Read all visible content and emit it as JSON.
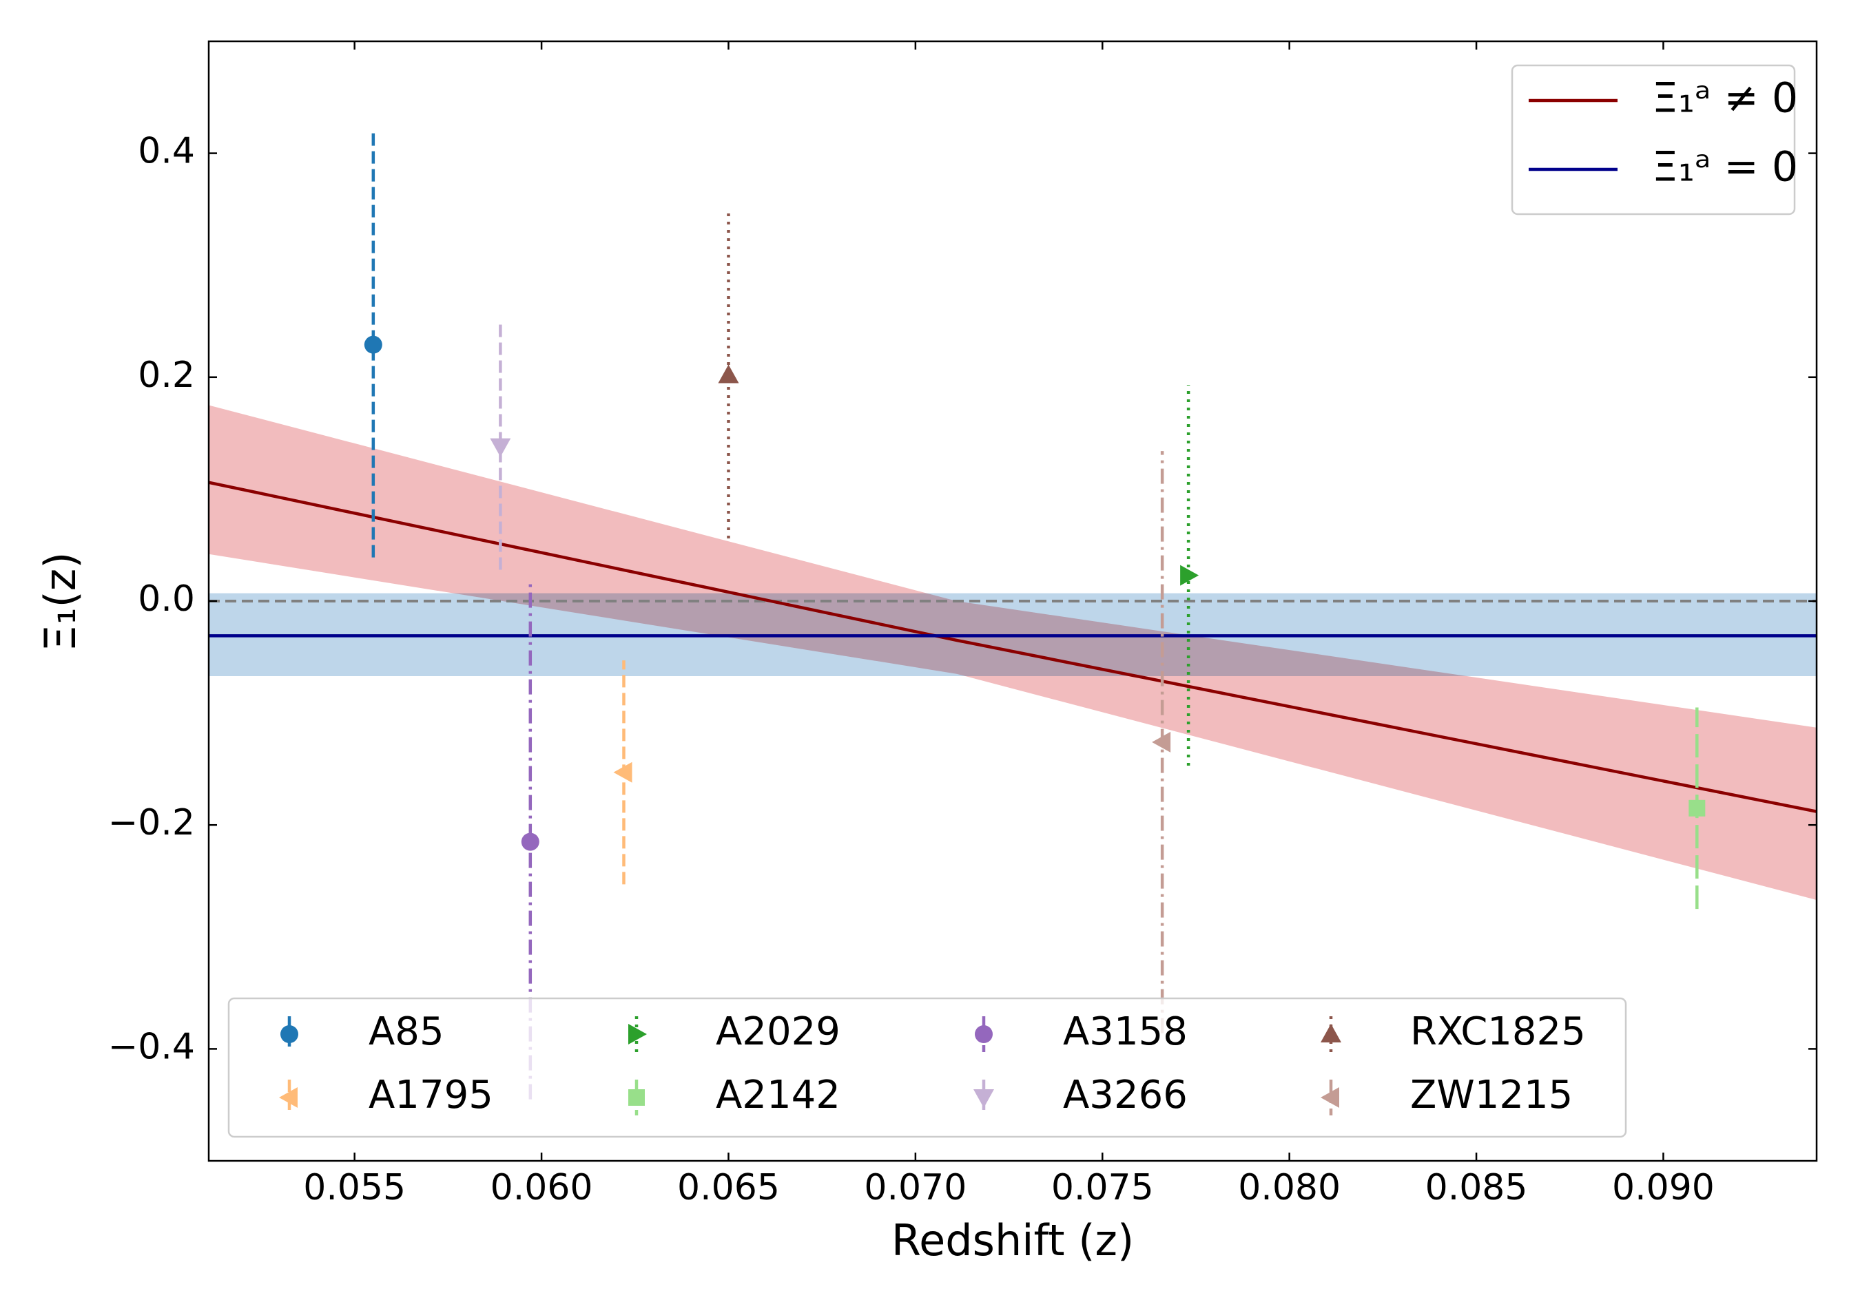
{
  "chart_data": {
    "type": "errorbar",
    "xlabel": "Redshift (z)",
    "ylabel": "Ξ₁(z)",
    "xlim": [
      0.0511,
      0.0941
    ],
    "ylim": [
      -0.5,
      0.5
    ],
    "xticks": [
      0.055,
      {
        "value": 0.06,
        "label": "0.060"
      },
      0.065,
      {
        "value": 0.07,
        "label": "0.070"
      },
      0.075,
      {
        "value": 0.08,
        "label": "0.080"
      },
      0.085,
      {
        "value": 0.09,
        "label": "0.090"
      }
    ],
    "yticks": [
      {
        "value": -0.4,
        "label": "−0.4"
      },
      {
        "value": -0.2,
        "label": "−0.2"
      },
      {
        "value": 0,
        "label": "0.0"
      },
      0.2,
      0.4
    ],
    "reference_line": {
      "value": 0,
      "color": "#808080"
    },
    "fits": [
      {
        "name": "Ξ₁ᵃ ≠ 0",
        "color": "#8b0000",
        "band_color": "#f2bcbe",
        "x": [
          0.0511,
          0.0711,
          0.0941
        ],
        "values": [
          0.106,
          -0.035,
          -0.188
        ],
        "band_upper": [
          0.175,
          0.0,
          -0.113
        ],
        "band_lower": [
          0.042,
          -0.065,
          -0.267
        ]
      },
      {
        "name": "Ξ₁ᵃ = 0",
        "color": "#00008b",
        "band_color": "#bad4e9",
        "x": [
          0.0511,
          0.0941
        ],
        "values": [
          -0.031,
          -0.031
        ],
        "band_upper": [
          0.007,
          0.007
        ],
        "band_lower": [
          -0.067,
          -0.067
        ]
      }
    ],
    "series": [
      {
        "name": "A85",
        "color": "#1f77b4",
        "marker": "circle",
        "linestyle": "dashed",
        "x": [
          0.0555
        ],
        "values": [
          0.229
        ],
        "errors": [
          0.19
        ]
      },
      {
        "name": "A1795",
        "color": "#ffbb78",
        "marker": "triangle-left",
        "linestyle": "dashed",
        "x": [
          0.0622
        ],
        "values": [
          -0.153
        ],
        "errors": [
          0.1
        ]
      },
      {
        "name": "A2029",
        "color": "#2ca02c",
        "marker": "triangle-right",
        "linestyle": "dotted",
        "x": [
          0.0773
        ],
        "values": [
          0.023
        ],
        "errors": [
          0.17
        ]
      },
      {
        "name": "A2142",
        "color": "#98df8a",
        "marker": "square",
        "linestyle": "longdash",
        "x": [
          0.0909
        ],
        "values": [
          -0.185
        ],
        "errors": [
          0.09
        ]
      },
      {
        "name": "A3158",
        "color": "#9467bd",
        "marker": "circle",
        "linestyle": "dashdot",
        "x": [
          0.0597
        ],
        "values": [
          -0.215
        ],
        "errors": [
          0.23
        ]
      },
      {
        "name": "A3266",
        "color": "#c5b0d5",
        "marker": "triangle-down",
        "linestyle": "dashed",
        "x": [
          0.0589
        ],
        "values": [
          0.138
        ],
        "errors": [
          0.11
        ]
      },
      {
        "name": "RXC1825",
        "color": "#8c564b",
        "marker": "triangle-up",
        "linestyle": "dotted",
        "x": [
          0.065
        ],
        "values": [
          0.202
        ],
        "errors": [
          0.146
        ]
      },
      {
        "name": "ZW1215",
        "color": "#c49c94",
        "marker": "triangle-left",
        "linestyle": "dashdot",
        "x": [
          0.0766
        ],
        "values": [
          -0.126
        ],
        "errors": [
          0.26
        ]
      }
    ]
  }
}
